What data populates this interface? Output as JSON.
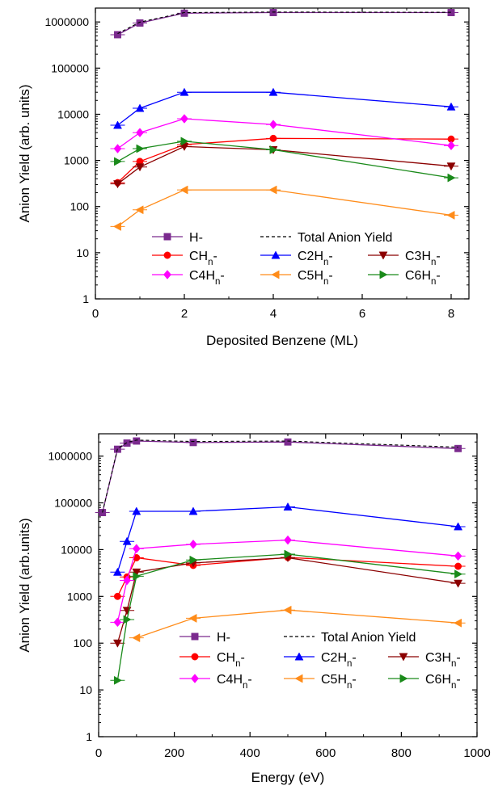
{
  "chart_data": [
    {
      "type": "line",
      "xlabel": "Deposited Benzene (ML)",
      "ylabel": "Anion Yield (arb. units)",
      "xlim": [
        0,
        8.4
      ],
      "ylim": [
        1,
        2000000
      ],
      "y_scale": "log",
      "x_ticks": [
        "0",
        "2",
        "4",
        "6",
        "8"
      ],
      "y_ticks": [
        "1",
        "10",
        "100",
        "1000",
        "10000",
        "100000",
        "1000000"
      ],
      "legend_placement": "bottom-center",
      "series": [
        {
          "label_main": "H",
          "label_sub": "",
          "label_tail": "-",
          "color": "#7b2a8e",
          "marker": "square",
          "x": [
            0.5,
            1,
            2,
            4,
            8
          ],
          "values": [
            530000,
            950000,
            1550000,
            1600000,
            1600000
          ]
        },
        {
          "label_main": "Total Anion Yield",
          "label_sub": "",
          "label_tail": "",
          "color": "#000000",
          "marker": "none",
          "dashed": true,
          "x": [
            0.5,
            1,
            2,
            4,
            8
          ],
          "values": [
            560000,
            990000,
            1600000,
            1640000,
            1620000
          ]
        },
        {
          "label_main": "CH",
          "label_sub": "n",
          "label_tail": "-",
          "color": "#ff0000",
          "marker": "circle",
          "x": [
            0.5,
            1,
            2,
            4,
            8
          ],
          "values": [
            330,
            950,
            2200,
            3000,
            2900
          ]
        },
        {
          "label_main": "C2H",
          "label_sub": "n",
          "label_tail": "-",
          "color": "#0000ff",
          "marker": "triangle-up",
          "x": [
            0.5,
            1,
            2,
            4,
            8
          ],
          "values": [
            5800,
            13500,
            30000,
            30000,
            14500
          ]
        },
        {
          "label_main": "C3H",
          "label_sub": "n",
          "label_tail": "-",
          "color": "#8b0000",
          "marker": "triangle-down",
          "x": [
            0.5,
            1,
            2,
            4,
            8
          ],
          "values": [
            310,
            720,
            2000,
            1700,
            750
          ]
        },
        {
          "label_main": "C4H",
          "label_sub": "n",
          "label_tail": "-",
          "color": "#ff00ff",
          "marker": "diamond",
          "x": [
            0.5,
            1,
            2,
            4,
            8
          ],
          "values": [
            1800,
            4000,
            8000,
            6000,
            2100
          ]
        },
        {
          "label_main": "C5H",
          "label_sub": "n",
          "label_tail": "-",
          "color": "#ff8c1a",
          "marker": "triangle-left",
          "x": [
            0.5,
            1,
            2,
            4,
            8
          ],
          "values": [
            37,
            85,
            230,
            230,
            65
          ]
        },
        {
          "label_main": "C6H",
          "label_sub": "n",
          "label_tail": "-",
          "color": "#1a8a1a",
          "marker": "triangle-right",
          "x": [
            0.5,
            1,
            2,
            4,
            8
          ],
          "values": [
            950,
            1800,
            2600,
            1700,
            420
          ]
        }
      ]
    },
    {
      "type": "line",
      "xlabel": "Energy (eV)",
      "ylabel": "Anion Yield (arb.units)",
      "xlim": [
        0,
        1000
      ],
      "ylim": [
        1,
        3000000
      ],
      "y_scale": "log",
      "x_ticks": [
        "0",
        "200",
        "400",
        "600",
        "800",
        "1000"
      ],
      "y_ticks": [
        "1",
        "10",
        "100",
        "1000",
        "10000",
        "100000",
        "1000000"
      ],
      "legend_placement": "bottom-center",
      "series": [
        {
          "label_main": "H",
          "label_sub": "",
          "label_tail": "-",
          "color": "#7b2a8e",
          "marker": "square",
          "x": [
            10,
            50,
            75,
            100,
            250,
            500,
            950
          ],
          "values": [
            62000,
            1400000,
            1900000,
            2100000,
            1950000,
            2000000,
            1450000
          ]
        },
        {
          "label_main": "Total Anion Yield",
          "label_sub": "",
          "label_tail": "",
          "color": "#000000",
          "marker": "none",
          "dashed": true,
          "x": [
            10,
            50,
            75,
            100,
            250,
            500,
            950
          ],
          "values": [
            62000,
            1450000,
            1950000,
            2200000,
            2050000,
            2100000,
            1550000
          ]
        },
        {
          "label_main": "CH",
          "label_sub": "n",
          "label_tail": "-",
          "color": "#ff0000",
          "marker": "circle",
          "x": [
            50,
            75,
            100,
            250,
            500,
            950
          ],
          "values": [
            1000,
            2600,
            6700,
            4600,
            6800,
            4400
          ]
        },
        {
          "label_main": "C2H",
          "label_sub": "n",
          "label_tail": "-",
          "color": "#0000ff",
          "marker": "triangle-up",
          "x": [
            50,
            75,
            100,
            250,
            500,
            950
          ],
          "values": [
            3300,
            15000,
            66000,
            66000,
            82000,
            31000
          ]
        },
        {
          "label_main": "C3H",
          "label_sub": "n",
          "label_tail": "-",
          "color": "#8b0000",
          "marker": "triangle-down",
          "x": [
            50,
            75,
            100,
            250,
            500,
            950
          ],
          "values": [
            100,
            500,
            3300,
            5200,
            6700,
            1900
          ]
        },
        {
          "label_main": "C4H",
          "label_sub": "n",
          "label_tail": "-",
          "color": "#ff00ff",
          "marker": "diamond",
          "x": [
            50,
            75,
            100,
            250,
            500,
            950
          ],
          "values": [
            280,
            2200,
            10500,
            13000,
            16000,
            7300
          ]
        },
        {
          "label_main": "C5H",
          "label_sub": "n",
          "label_tail": "-",
          "color": "#ff8c1a",
          "marker": "triangle-left",
          "x": [
            100,
            250,
            500,
            950
          ],
          "values": [
            130,
            340,
            510,
            270
          ]
        },
        {
          "label_main": "C6H",
          "label_sub": "n",
          "label_tail": "-",
          "color": "#1a8a1a",
          "marker": "triangle-right",
          "x": [
            50,
            75,
            100,
            250,
            500,
            950
          ],
          "values": [
            16,
            320,
            2700,
            6000,
            8000,
            3000
          ]
        }
      ]
    }
  ]
}
